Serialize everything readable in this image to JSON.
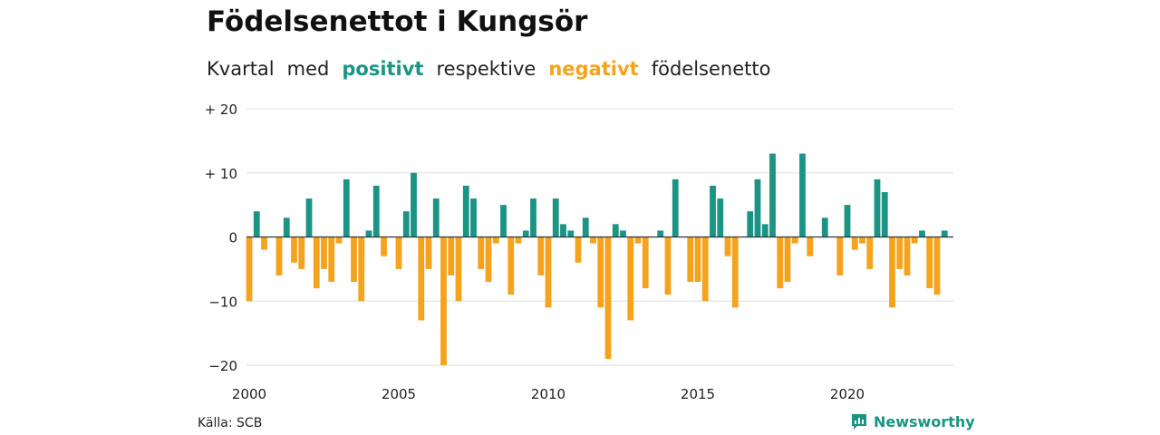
{
  "title": "Födelsenettot i Kungsör",
  "subtitle": {
    "part1": "Kvartal",
    "part2": "med",
    "positive": "positivt",
    "part3": "respektive",
    "negative": "negativt",
    "part4": "födelsenetto"
  },
  "source": "Källa: SCB",
  "brand": "Newsworthy",
  "colors": {
    "positive": "#1a9485",
    "negative": "#f5a31c",
    "grid": "#dddddd",
    "axis": "#333333"
  },
  "chart_data": {
    "type": "bar",
    "x_start": "2000-Q1",
    "y_tick_labels": [
      "+ 20",
      "+ 10",
      "0",
      "−10",
      "−20"
    ],
    "y_ticks": [
      20,
      10,
      0,
      -10,
      -20
    ],
    "x_tick_labels": [
      "2000",
      "2005",
      "2010",
      "2015",
      "2020"
    ],
    "ylim": [
      -20,
      20
    ],
    "grid": true,
    "values": [
      -10,
      4,
      -2,
      0,
      -6,
      3,
      -4,
      -5,
      6,
      -8,
      -5,
      -7,
      -1,
      9,
      -7,
      -10,
      1,
      8,
      -3,
      0,
      -5,
      4,
      10,
      -13,
      -5,
      6,
      -20,
      -6,
      -10,
      8,
      6,
      -5,
      -7,
      -1,
      5,
      -9,
      -1,
      1,
      6,
      -6,
      -11,
      6,
      2,
      1,
      -4,
      3,
      -1,
      -11,
      -19,
      2,
      1,
      -13,
      -1,
      -8,
      0,
      1,
      -9,
      9,
      0,
      -7,
      -7,
      -10,
      8,
      6,
      -3,
      -11,
      0,
      4,
      9,
      2,
      13,
      -8,
      -7,
      -1,
      13,
      -3,
      0,
      3,
      0,
      -6,
      5,
      -2,
      -1,
      -5,
      9,
      7,
      -11,
      -5,
      -6,
      -1,
      1,
      -8,
      -9,
      1
    ]
  }
}
